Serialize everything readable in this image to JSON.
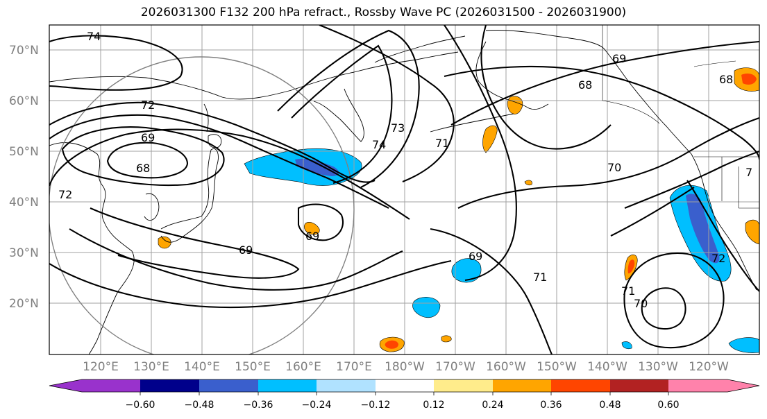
{
  "title": "2026031300 F132 200 hPa refract., Rossby Wave PC (2026031500 - 2026031900)",
  "latitude_labels": [
    "70°N",
    "60°N",
    "50°N",
    "40°N",
    "30°N",
    "20°N"
  ],
  "longitude_labels": [
    "120°E",
    "130°E",
    "140°E",
    "150°E",
    "160°E",
    "170°E",
    "180°W",
    "170°W",
    "160°W",
    "150°W",
    "140°W",
    "130°W",
    "120°W"
  ],
  "contour_labels": [
    "74",
    "72",
    "69",
    "68",
    "72",
    "69",
    "73",
    "74",
    "71",
    "69",
    "68",
    "69",
    "71",
    "70",
    "71",
    "70",
    "72",
    "68",
    "7",
    "69"
  ],
  "colorbar": {
    "ticks": [
      "−0.60",
      "−0.48",
      "−0.36",
      "−0.24",
      "−0.12",
      "0.12",
      "0.24",
      "0.36",
      "0.48",
      "0.60"
    ],
    "colors": [
      "#9932cc",
      "#00008b",
      "#3a5fcd",
      "#00bfff",
      "#b0e2ff",
      "#ffffff",
      "#ffec8b",
      "#ffa500",
      "#ff4500",
      "#b22222",
      "#ff82ab"
    ]
  },
  "colors": {
    "negative_strong": "#3a5fcd",
    "negative": "#00bfff",
    "positive": "#ffa500",
    "positive_strong": "#ff4500",
    "contour": "#000000",
    "grid": "#a0a0a0",
    "axis_label": "#7f7f7f"
  }
}
